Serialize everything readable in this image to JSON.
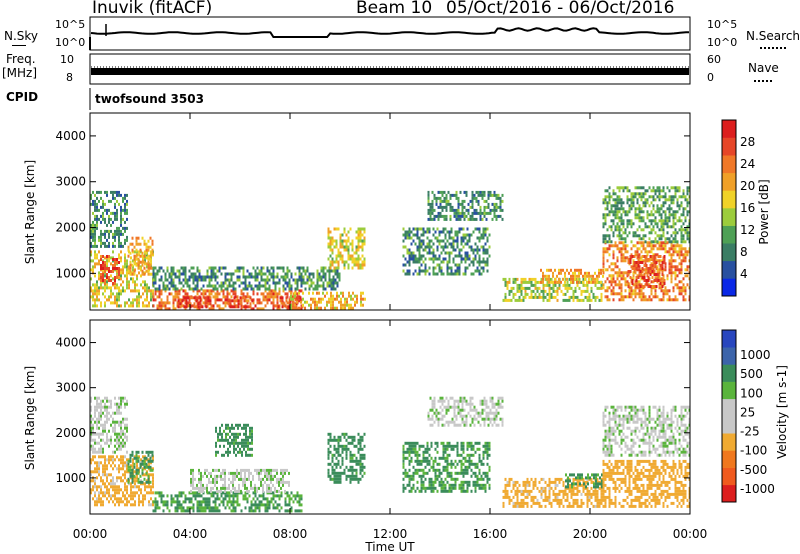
{
  "header": {
    "station_title": "Inuvik (fitACF)",
    "beam_title": "Beam 10",
    "date_range": "05/Oct/2016 - 06/Oct/2016"
  },
  "top_panels": {
    "nsky_label": "N.Sky",
    "nsky_tick_top": "10^5",
    "nsky_tick_bottom": "10^0",
    "nsearch_label": "N.Search",
    "nsearch_tick_top": "10^5",
    "nsearch_tick_bottom": "10^0",
    "freq_label_1": "Freq.",
    "freq_label_2": "[MHz]",
    "freq_tick_top": "10",
    "freq_tick_bottom": "8",
    "nave_label": "Nave",
    "nave_tick_top": "60",
    "nave_tick_bottom": "0",
    "cpid_label": "CPID",
    "cpid_value": "twofsound 3503"
  },
  "colors": {
    "power": [
      "#0a28e6",
      "#2850a0",
      "#3a7d64",
      "#4ea055",
      "#9ccc3c",
      "#f0d228",
      "#f0a028",
      "#f07828",
      "#e64628",
      "#dc1e1e"
    ],
    "velocity": [
      "#dc1e1e",
      "#f05a1e",
      "#f0781e",
      "#f0aa32",
      "#c8c8c8",
      "#c8c8c8",
      "#5ab43c",
      "#3a8c5a",
      "#3c64aa",
      "#2846be"
    ]
  },
  "chart_data": [
    {
      "type": "heatmap",
      "panel": "power",
      "ylabel": "Slant Range [km]",
      "y_ticks": [
        "1000",
        "2000",
        "3000",
        "4000"
      ],
      "ylim": [
        200,
        4500
      ],
      "xlim": [
        "00:00",
        "24:00"
      ],
      "colorbar_label": "Power [dB]",
      "colorbar_ticks": [
        "4",
        "8",
        "12",
        "16",
        "20",
        "24",
        "28"
      ],
      "colorbar_range": [
        0,
        30
      ],
      "echo_regions": [
        {
          "t": [
            0.0,
            2.5
          ],
          "r": [
            300,
            1500
          ],
          "v": 16
        },
        {
          "t": [
            0.4,
            1.2
          ],
          "r": [
            800,
            1400
          ],
          "v": 26
        },
        {
          "t": [
            0.0,
            1.5
          ],
          "r": [
            1600,
            2800
          ],
          "v": 8
        },
        {
          "t": [
            1.5,
            2.5
          ],
          "r": [
            1000,
            1800
          ],
          "v": 20
        },
        {
          "t": [
            2.5,
            8.5
          ],
          "r": [
            250,
            650
          ],
          "v": 24
        },
        {
          "t": [
            3.5,
            4.8
          ],
          "r": [
            250,
            500
          ],
          "v": 28
        },
        {
          "t": [
            5.5,
            6.5
          ],
          "r": [
            250,
            500
          ],
          "v": 26
        },
        {
          "t": [
            7.5,
            8.5
          ],
          "r": [
            250,
            500
          ],
          "v": 28
        },
        {
          "t": [
            2.5,
            10.0
          ],
          "r": [
            650,
            1150
          ],
          "v": 8
        },
        {
          "t": [
            8.0,
            11.0
          ],
          "r": [
            250,
            600
          ],
          "v": 18
        },
        {
          "t": [
            9.5,
            11.0
          ],
          "r": [
            1100,
            2000
          ],
          "v": 16
        },
        {
          "t": [
            12.5,
            16.0
          ],
          "r": [
            1000,
            2000
          ],
          "v": 8
        },
        {
          "t": [
            13.5,
            16.5
          ],
          "r": [
            2200,
            2800
          ],
          "v": 8
        },
        {
          "t": [
            16.5,
            20.5
          ],
          "r": [
            400,
            900
          ],
          "v": 14
        },
        {
          "t": [
            18.0,
            20.5
          ],
          "r": [
            800,
            1100
          ],
          "v": 20
        },
        {
          "t": [
            20.5,
            24.0
          ],
          "r": [
            400,
            1700
          ],
          "v": 22
        },
        {
          "t": [
            21.5,
            23.0
          ],
          "r": [
            700,
            1400
          ],
          "v": 26
        },
        {
          "t": [
            20.5,
            24.0
          ],
          "r": [
            1700,
            2900
          ],
          "v": 10
        }
      ]
    },
    {
      "type": "heatmap",
      "panel": "velocity",
      "xlabel": "Time UT",
      "ylabel": "Slant Range [km]",
      "x_ticks": [
        "00:00",
        "04:00",
        "08:00",
        "12:00",
        "16:00",
        "20:00",
        "00:00"
      ],
      "y_ticks": [
        "1000",
        "2000",
        "3000",
        "4000"
      ],
      "ylim": [
        200,
        4500
      ],
      "xlim": [
        "00:00",
        "24:00"
      ],
      "colorbar_label": "Velocity [m s-1]",
      "colorbar_ticks": [
        "-1000",
        "-500",
        "-100",
        "-25",
        "25",
        "100",
        "500",
        "1000"
      ],
      "echo_regions": [
        {
          "t": [
            0.0,
            2.5
          ],
          "r": [
            400,
            1500
          ],
          "v": -150
        },
        {
          "t": [
            0.0,
            1.5
          ],
          "r": [
            1600,
            2800
          ],
          "v": 0
        },
        {
          "t": [
            1.5,
            2.5
          ],
          "r": [
            900,
            1600
          ],
          "v": 120
        },
        {
          "t": [
            2.5,
            8.5
          ],
          "r": [
            250,
            700
          ],
          "v": 110
        },
        {
          "t": [
            4.0,
            8.0
          ],
          "r": [
            700,
            1200
          ],
          "v": 0
        },
        {
          "t": [
            5.0,
            6.5
          ],
          "r": [
            1500,
            2200
          ],
          "v": 150
        },
        {
          "t": [
            9.5,
            11.0
          ],
          "r": [
            900,
            2000
          ],
          "v": 150
        },
        {
          "t": [
            12.5,
            16.0
          ],
          "r": [
            700,
            1800
          ],
          "v": 120
        },
        {
          "t": [
            13.5,
            16.5
          ],
          "r": [
            2200,
            2800
          ],
          "v": 0
        },
        {
          "t": [
            16.5,
            20.5
          ],
          "r": [
            400,
            1000
          ],
          "v": -150
        },
        {
          "t": [
            19.0,
            20.5
          ],
          "r": [
            800,
            1100
          ],
          "v": 120
        },
        {
          "t": [
            20.5,
            24.0
          ],
          "r": [
            400,
            1400
          ],
          "v": -200
        },
        {
          "t": [
            20.5,
            24.0
          ],
          "r": [
            1500,
            2600
          ],
          "v": 0
        }
      ]
    }
  ]
}
